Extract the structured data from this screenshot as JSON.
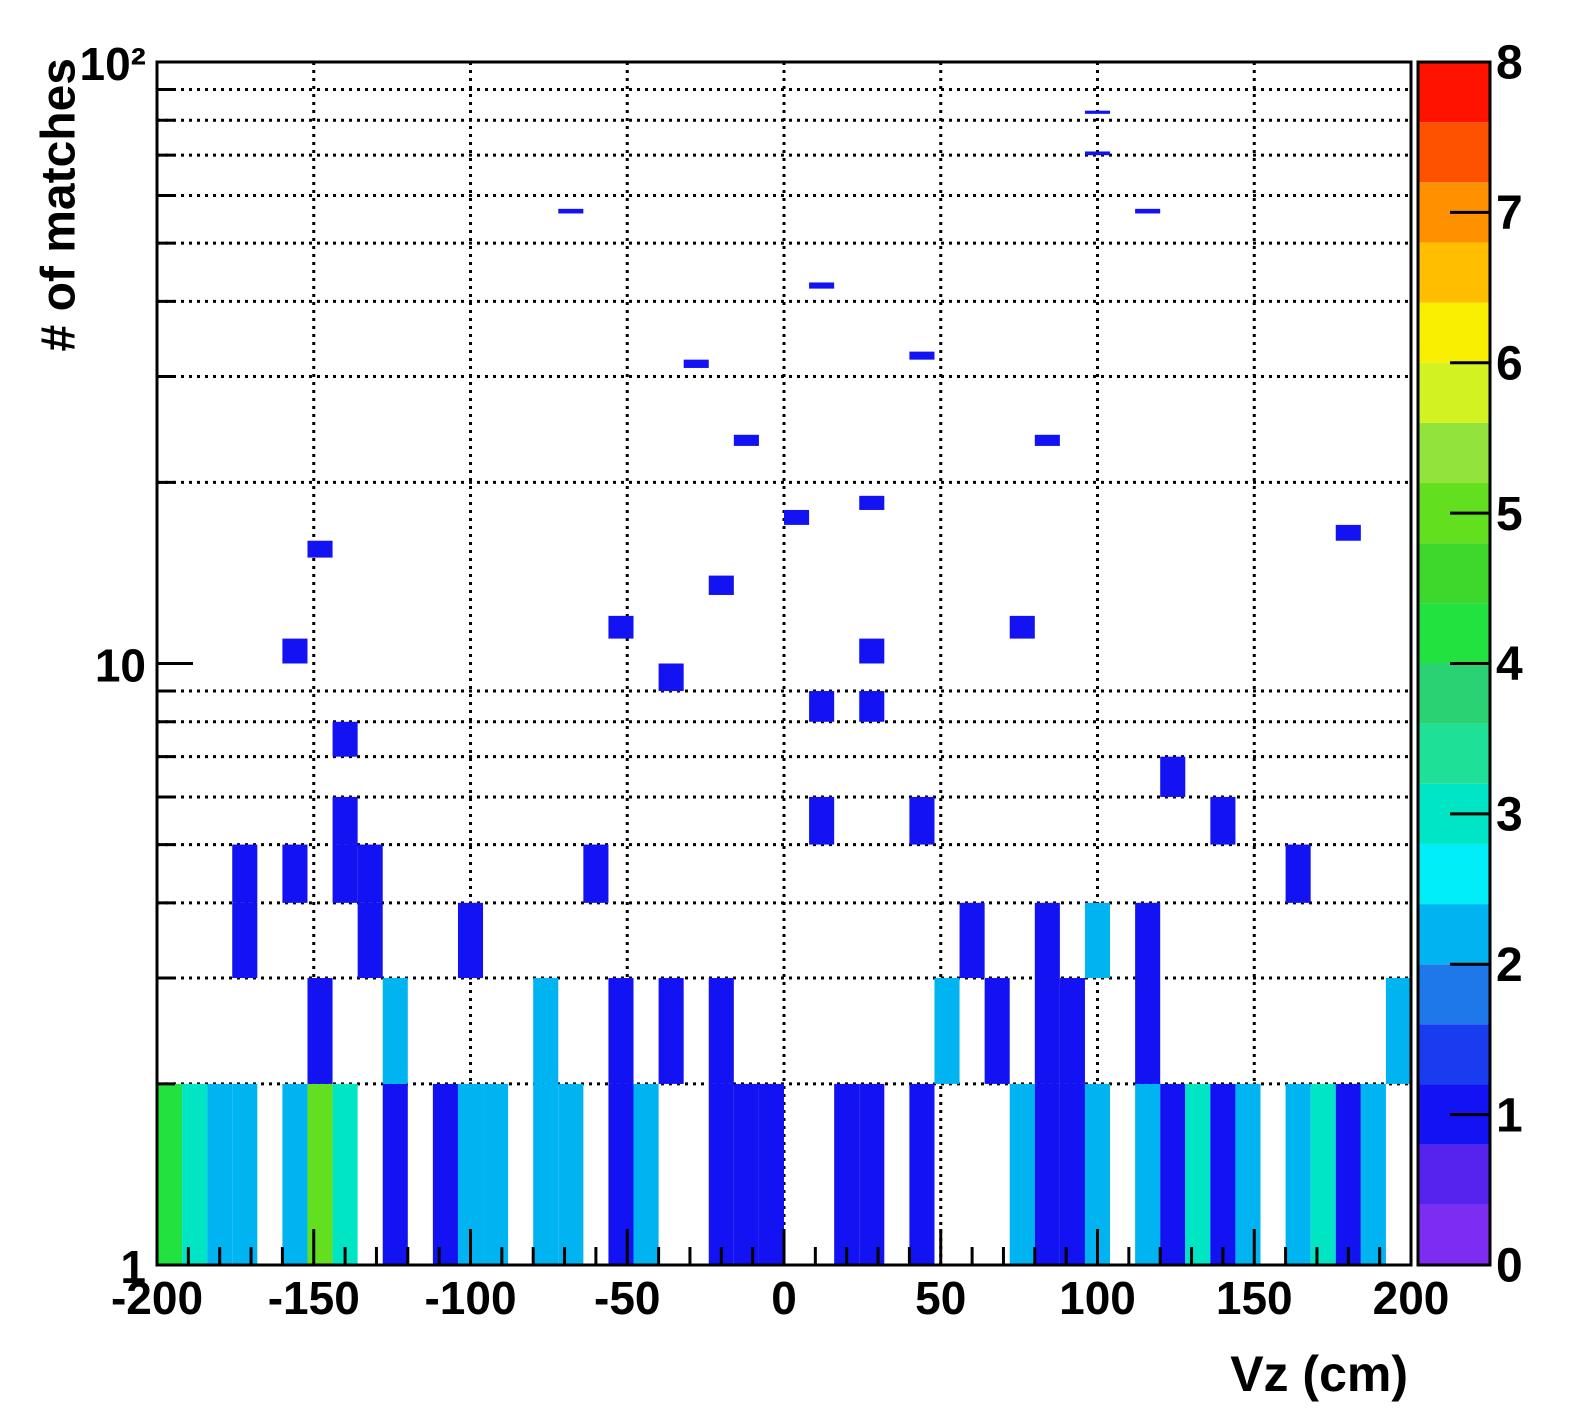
{
  "chart_data": {
    "type": "heatmap",
    "xlabel": "Vz (cm)",
    "ylabel": "# of matches",
    "xlim": [
      -200,
      200
    ],
    "xticks": [
      -200,
      -150,
      -100,
      -50,
      0,
      50,
      100,
      150,
      200
    ],
    "xminorticks": [
      -190,
      -180,
      -170,
      -160,
      -140,
      -130,
      -120,
      -110,
      -90,
      -80,
      -70,
      -60,
      -40,
      -30,
      -20,
      -10,
      10,
      20,
      30,
      40,
      60,
      70,
      80,
      90,
      110,
      120,
      130,
      140,
      160,
      170,
      180,
      190
    ],
    "ylim": [
      1,
      100
    ],
    "ylog": true,
    "yticks": [
      1,
      10,
      {
        "value": 100,
        "label": "10²"
      }
    ],
    "yminorticks": [
      2,
      3,
      4,
      5,
      6,
      7,
      8,
      9,
      20,
      30,
      40,
      50,
      60,
      70,
      80,
      90
    ],
    "grid": true,
    "xbin_width": 8,
    "ybin_width": 1,
    "zlim": [
      0,
      8
    ],
    "zticks": [
      0,
      1,
      2,
      3,
      4,
      5,
      6,
      7,
      8
    ],
    "palette": [
      "#7d2cf2",
      "#5522ee",
      "#1212f2",
      "#1a3cf0",
      "#1e78ea",
      "#00b4f2",
      "#00eef8",
      "#00e6c4",
      "#1ee096",
      "#2ad274",
      "#22e240",
      "#3ed82c",
      "#62e020",
      "#92e43c",
      "#d2f222",
      "#f8f000",
      "#ffbe00",
      "#ff9000",
      "#ff5200",
      "#ff1200"
    ],
    "x": [
      -200,
      -192,
      -184,
      -176,
      -160,
      -152,
      -144,
      -128,
      -112,
      -104,
      -96,
      -80,
      -72,
      -56,
      -48,
      -24,
      -16,
      -8,
      16,
      24,
      40,
      72,
      80,
      88,
      96,
      112,
      120,
      128,
      136,
      144,
      160,
      168,
      176,
      184,
      -152,
      -128,
      -80,
      -56,
      -40,
      -24,
      48,
      64,
      80,
      88,
      112,
      192,
      -176,
      -136,
      -104,
      56,
      80,
      96,
      112,
      -176,
      -160,
      -144,
      -136,
      -64,
      160,
      -144,
      8,
      40,
      136,
      120,
      -144,
      8,
      24,
      -40,
      -160,
      24,
      -56,
      72,
      -24,
      -152,
      176,
      0,
      24,
      -16,
      80,
      -32,
      40,
      8,
      -72,
      112,
      96,
      96
    ],
    "y": [
      1,
      1,
      1,
      1,
      1,
      1,
      1,
      1,
      1,
      1,
      1,
      1,
      1,
      1,
      1,
      1,
      1,
      1,
      1,
      1,
      1,
      1,
      1,
      1,
      1,
      1,
      1,
      1,
      1,
      1,
      1,
      1,
      1,
      1,
      2,
      2,
      2,
      2,
      2,
      2,
      2,
      2,
      2,
      2,
      2,
      2,
      3,
      3,
      3,
      3,
      3,
      3,
      3,
      4,
      4,
      4,
      4,
      4,
      4,
      5,
      5,
      5,
      5,
      6,
      7,
      8,
      8,
      9,
      10,
      10,
      11,
      11,
      13,
      15,
      16,
      17,
      18,
      23,
      23,
      31,
      32,
      42,
      56,
      56,
      70,
      82
    ],
    "z": [
      4,
      3,
      2,
      2,
      2,
      5,
      3,
      1,
      1,
      2,
      2,
      2,
      2,
      1,
      2,
      1,
      1,
      1,
      1,
      1,
      1,
      2,
      1,
      1,
      2,
      2,
      1,
      3,
      1,
      2,
      2,
      3,
      1,
      2,
      1,
      2,
      2,
      1,
      1,
      1,
      2,
      1,
      1,
      1,
      1,
      2,
      1,
      1,
      1,
      1,
      1,
      2,
      1,
      1,
      1,
      1,
      1,
      1,
      1,
      1,
      1,
      1,
      1,
      1,
      1,
      1,
      1,
      1,
      1,
      1,
      1,
      1,
      1,
      1,
      1,
      1,
      1,
      1,
      1,
      1,
      1,
      1,
      1,
      1,
      1,
      1
    ]
  }
}
